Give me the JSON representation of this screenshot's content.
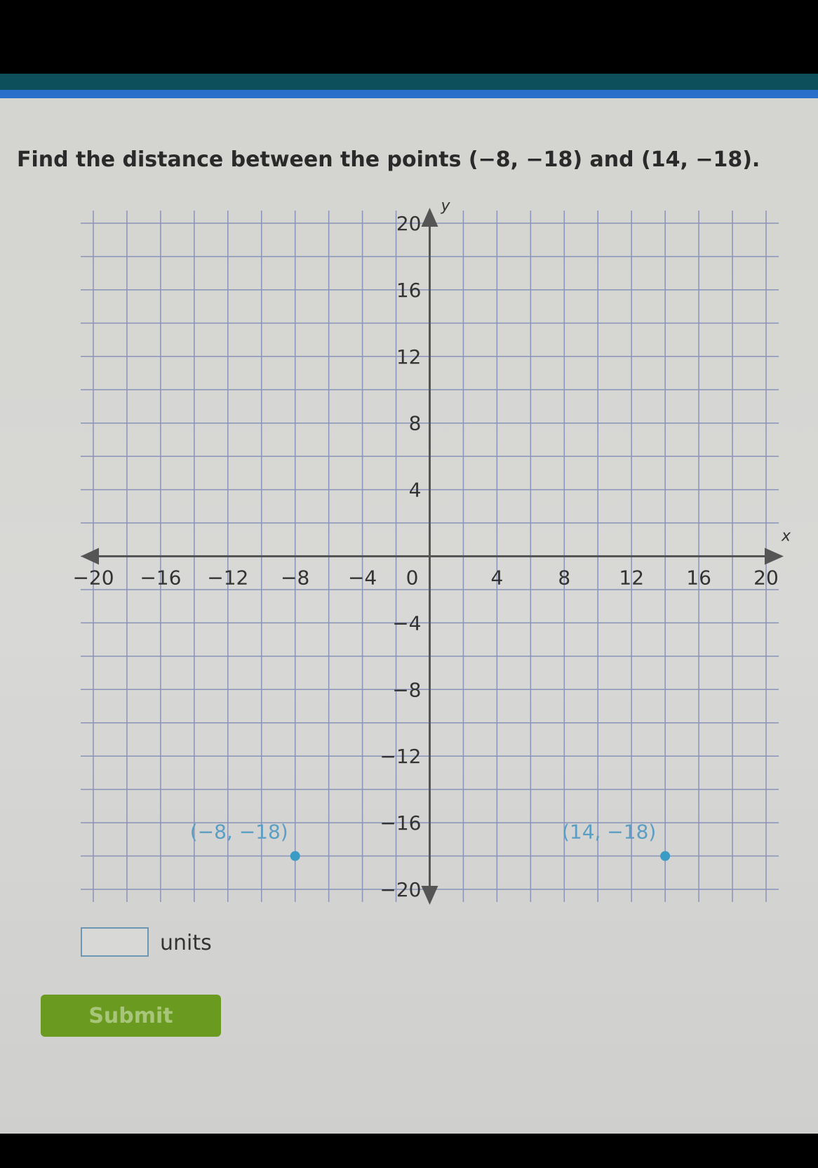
{
  "question": {
    "text": "Find the distance between the points (−8, −18) and (14, −18)."
  },
  "answer": {
    "value": "",
    "units_label": "units"
  },
  "submit_label": "Submit",
  "chart_data": {
    "type": "scatter",
    "xlabel": "x",
    "ylabel": "y",
    "xlim": [
      -20,
      20
    ],
    "ylim": [
      -20,
      20
    ],
    "grid": true,
    "grid_step": 2,
    "x_ticks": [
      -20,
      -16,
      -12,
      -8,
      -4,
      0,
      4,
      8,
      12,
      16,
      20
    ],
    "x_tick_labels": [
      "−20",
      "−16",
      "−12",
      "−8",
      "−4",
      "0",
      "4",
      "8",
      "12",
      "16",
      "20"
    ],
    "y_ticks": [
      20,
      16,
      12,
      8,
      4,
      -4,
      -8,
      -12,
      -16,
      -20
    ],
    "y_tick_labels": [
      "20",
      "16",
      "12",
      "8",
      "4",
      "−4",
      "−8",
      "−12",
      "−16",
      "−20"
    ],
    "points": [
      {
        "x": -8,
        "y": -18,
        "label": "(−8, −18)"
      },
      {
        "x": 14,
        "y": -18,
        "label": "(14, −18)"
      }
    ],
    "colors": {
      "grid": "#8a93b8",
      "axis": "#555555",
      "point": "#3a9bc4"
    }
  }
}
